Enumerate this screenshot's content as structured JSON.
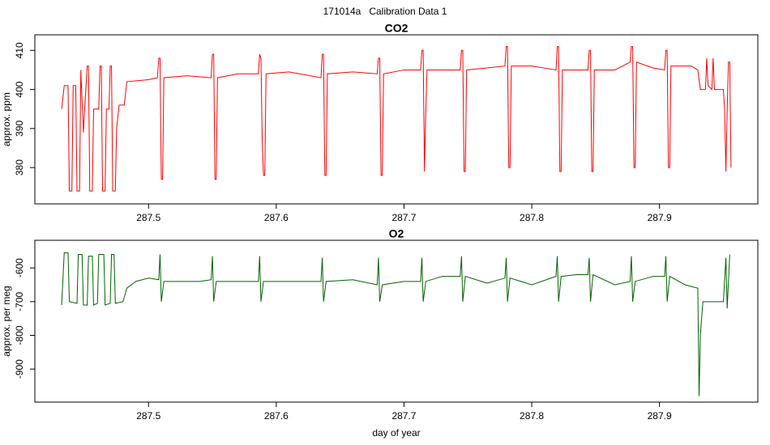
{
  "title": "171014a   Calibration Data 1",
  "chart_data": [
    {
      "type": "line",
      "title": "CO2",
      "ylabel": "approx. ppm",
      "color": "#ff0000",
      "xlim": [
        287.411,
        287.977
      ],
      "xticks": [
        287.5,
        287.6,
        287.7,
        287.8,
        287.9
      ],
      "ylim": [
        370.7,
        414
      ],
      "yticks": [
        380,
        390,
        400,
        410
      ],
      "x": [
        287.432,
        287.434,
        287.437,
        287.438,
        287.44,
        287.441,
        287.443,
        287.444,
        287.446,
        287.447,
        287.449,
        287.45,
        287.452,
        287.453,
        287.454,
        287.456,
        287.457,
        287.461,
        287.462,
        287.463,
        287.464,
        287.466,
        287.467,
        287.469,
        287.47,
        287.471,
        287.472,
        287.474,
        287.475,
        287.477,
        287.481,
        287.483,
        287.5,
        287.507,
        287.508,
        287.509,
        287.51,
        287.511,
        287.512,
        287.53,
        287.549,
        287.55,
        287.551,
        287.552,
        287.553,
        287.554,
        287.57,
        287.586,
        287.587,
        287.588,
        287.589,
        287.59,
        287.591,
        287.592,
        287.61,
        287.635,
        287.636,
        287.637,
        287.638,
        287.639,
        287.64,
        287.66,
        287.679,
        287.68,
        287.681,
        287.682,
        287.683,
        287.684,
        287.7,
        287.713,
        287.714,
        287.715,
        287.716,
        287.717,
        287.718,
        287.73,
        287.744,
        287.745,
        287.746,
        287.747,
        287.748,
        287.749,
        287.765,
        287.779,
        287.78,
        287.781,
        287.782,
        287.783,
        287.784,
        287.8,
        287.819,
        287.82,
        287.821,
        287.822,
        287.823,
        287.824,
        287.835,
        287.844,
        287.845,
        287.846,
        287.847,
        287.848,
        287.849,
        287.865,
        287.877,
        287.878,
        287.879,
        287.88,
        287.881,
        287.882,
        287.895,
        287.904,
        287.905,
        287.906,
        287.907,
        287.908,
        287.909,
        287.925,
        287.93,
        287.932,
        287.936,
        287.937,
        287.938,
        287.941,
        287.942,
        287.943,
        287.95,
        287.951,
        287.952,
        287.953,
        287.954,
        287.955,
        287.956
      ],
      "values": [
        395,
        401,
        401,
        374,
        374,
        401,
        401,
        374,
        374,
        405,
        389,
        395,
        406,
        406,
        374,
        374,
        395,
        395,
        406,
        406,
        374,
        374,
        395,
        395,
        406,
        406,
        374,
        374,
        390,
        396,
        396,
        402,
        402.5,
        403,
        408,
        408,
        377,
        377,
        403,
        403.5,
        403,
        409,
        409,
        377,
        377,
        403,
        404,
        404,
        409,
        408,
        387,
        378,
        378,
        404,
        404.5,
        403,
        409,
        409,
        378,
        378,
        404,
        404.5,
        404,
        408,
        408,
        378,
        378,
        404,
        405,
        405,
        410,
        410,
        379,
        394,
        405,
        405,
        405,
        410,
        410,
        379,
        379,
        405,
        405.5,
        406,
        411,
        411,
        380,
        380,
        406,
        406,
        405,
        411,
        411,
        379,
        379,
        405,
        405,
        405,
        410,
        410,
        379,
        379,
        405,
        405,
        407,
        411,
        411,
        380,
        380,
        407,
        405.5,
        405,
        410,
        410,
        380,
        380,
        406,
        406,
        405,
        400,
        400,
        408,
        401,
        400,
        408,
        400,
        400,
        395,
        379,
        395,
        407,
        407,
        380
      ]
    },
    {
      "type": "line",
      "title": "O2",
      "ylabel": "approx. per meg",
      "xlabel": "day of year",
      "color": "#006400",
      "xlim": [
        287.411,
        287.977
      ],
      "xticks": [
        287.5,
        287.6,
        287.7,
        287.8,
        287.9
      ],
      "ylim": [
        -998,
        -518
      ],
      "yticks": [
        -900,
        -800,
        -700,
        -600
      ],
      "x": [
        287.432,
        287.434,
        287.437,
        287.438,
        287.444,
        287.445,
        287.448,
        287.449,
        287.452,
        287.453,
        287.456,
        287.457,
        287.46,
        287.461,
        287.465,
        287.466,
        287.47,
        287.471,
        287.473,
        287.474,
        287.48,
        287.483,
        287.49,
        287.5,
        287.508,
        287.509,
        287.51,
        287.512,
        287.54,
        287.549,
        287.55,
        287.551,
        287.553,
        287.57,
        287.586,
        287.587,
        287.588,
        287.59,
        287.61,
        287.635,
        287.636,
        287.637,
        287.639,
        287.66,
        287.679,
        287.68,
        287.681,
        287.683,
        287.7,
        287.713,
        287.714,
        287.715,
        287.717,
        287.73,
        287.744,
        287.745,
        287.746,
        287.748,
        287.765,
        287.779,
        287.78,
        287.781,
        287.783,
        287.8,
        287.819,
        287.82,
        287.821,
        287.823,
        287.835,
        287.844,
        287.845,
        287.846,
        287.848,
        287.865,
        287.877,
        287.878,
        287.879,
        287.881,
        287.895,
        287.904,
        287.905,
        287.906,
        287.908,
        287.92,
        287.93,
        287.931,
        287.932,
        287.934,
        287.95,
        287.952,
        287.953,
        287.955
      ],
      "values": [
        -710,
        -555,
        -555,
        -700,
        -705,
        -560,
        -560,
        -710,
        -710,
        -565,
        -565,
        -710,
        -705,
        -560,
        -560,
        -710,
        -705,
        -560,
        -560,
        -705,
        -700,
        -660,
        -640,
        -630,
        -635,
        -560,
        -700,
        -640,
        -640,
        -635,
        -565,
        -700,
        -640,
        -640,
        -640,
        -565,
        -700,
        -640,
        -640,
        -640,
        -570,
        -700,
        -640,
        -635,
        -650,
        -570,
        -700,
        -650,
        -640,
        -640,
        -570,
        -700,
        -640,
        -625,
        -625,
        -565,
        -700,
        -625,
        -645,
        -630,
        -570,
        -700,
        -630,
        -650,
        -625,
        -565,
        -700,
        -625,
        -620,
        -620,
        -570,
        -700,
        -620,
        -650,
        -640,
        -565,
        -700,
        -640,
        -625,
        -625,
        -565,
        -700,
        -625,
        -650,
        -660,
        -980,
        -800,
        -700,
        -700,
        -570,
        -720,
        -560
      ]
    }
  ]
}
